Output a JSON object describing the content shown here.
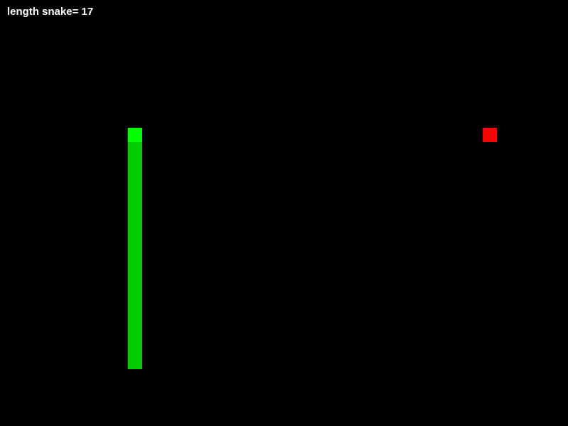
{
  "hud": {
    "score_text": "length snake= 17"
  },
  "board": {
    "cols": 40,
    "rows": 30
  },
  "colors": {
    "background": "#000000",
    "snake_head": "#00ff00",
    "snake_body": "#00cc00",
    "food": "#ff0000"
  },
  "snake": [
    {
      "col": 9,
      "row": 9
    },
    {
      "col": 9,
      "row": 10
    },
    {
      "col": 9,
      "row": 11
    },
    {
      "col": 9,
      "row": 12
    },
    {
      "col": 9,
      "row": 13
    },
    {
      "col": 9,
      "row": 14
    },
    {
      "col": 9,
      "row": 15
    },
    {
      "col": 9,
      "row": 16
    },
    {
      "col": 9,
      "row": 17
    },
    {
      "col": 9,
      "row": 18
    },
    {
      "col": 9,
      "row": 19
    },
    {
      "col": 9,
      "row": 20
    },
    {
      "col": 9,
      "row": 21
    },
    {
      "col": 9,
      "row": 22
    },
    {
      "col": 9,
      "row": 23
    },
    {
      "col": 9,
      "row": 24
    },
    {
      "col": 9,
      "row": 25
    }
  ],
  "food": {
    "col": 34,
    "row": 9
  }
}
